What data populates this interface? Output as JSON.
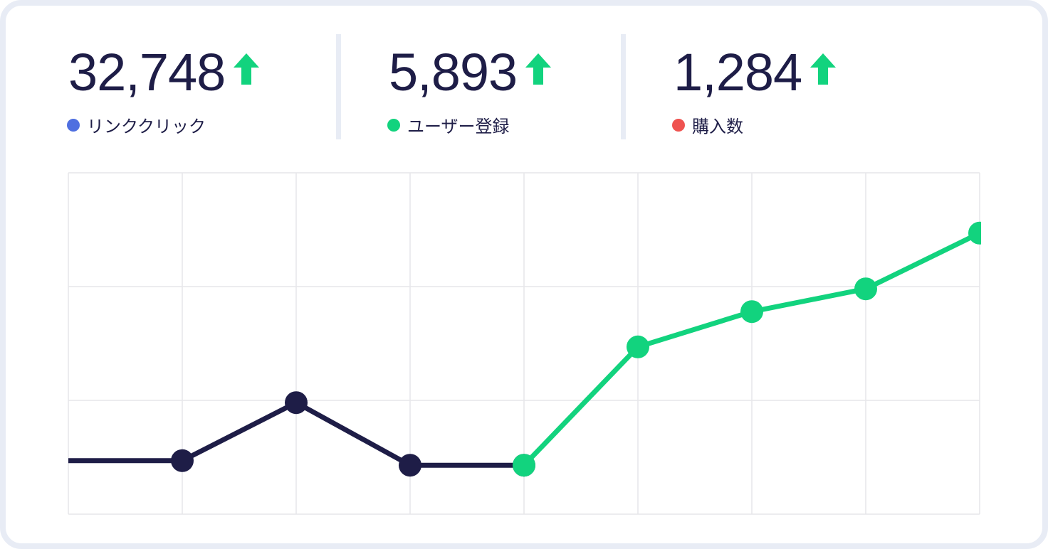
{
  "kpis": [
    {
      "value": "32,748",
      "label": "リンククリック",
      "dot_color": "#4f6fe0"
    },
    {
      "value": "5,893",
      "label": "ユーザー登録",
      "dot_color": "#12d37e"
    },
    {
      "value": "1,284",
      "label": "購入数",
      "dot_color": "#ef5350"
    }
  ],
  "chart_data": {
    "type": "line",
    "x": [
      0,
      1,
      2,
      3,
      4,
      5,
      6,
      7,
      8
    ],
    "xlim": [
      0,
      8
    ],
    "xticks": [
      0,
      1,
      2,
      3,
      4,
      5,
      6,
      7,
      8
    ],
    "ylim": [
      0,
      30
    ],
    "yticks": [
      0,
      10,
      20,
      30
    ],
    "grid": true,
    "series": [
      {
        "color": "#1e1d47",
        "values": [
          4.7,
          4.7,
          9.8,
          4.3,
          4.3,
          null,
          null,
          null,
          null
        ]
      },
      {
        "color": "#12d37e",
        "values": [
          null,
          null,
          null,
          null,
          4.3,
          14.7,
          17.8,
          19.8,
          24.7
        ]
      }
    ]
  }
}
